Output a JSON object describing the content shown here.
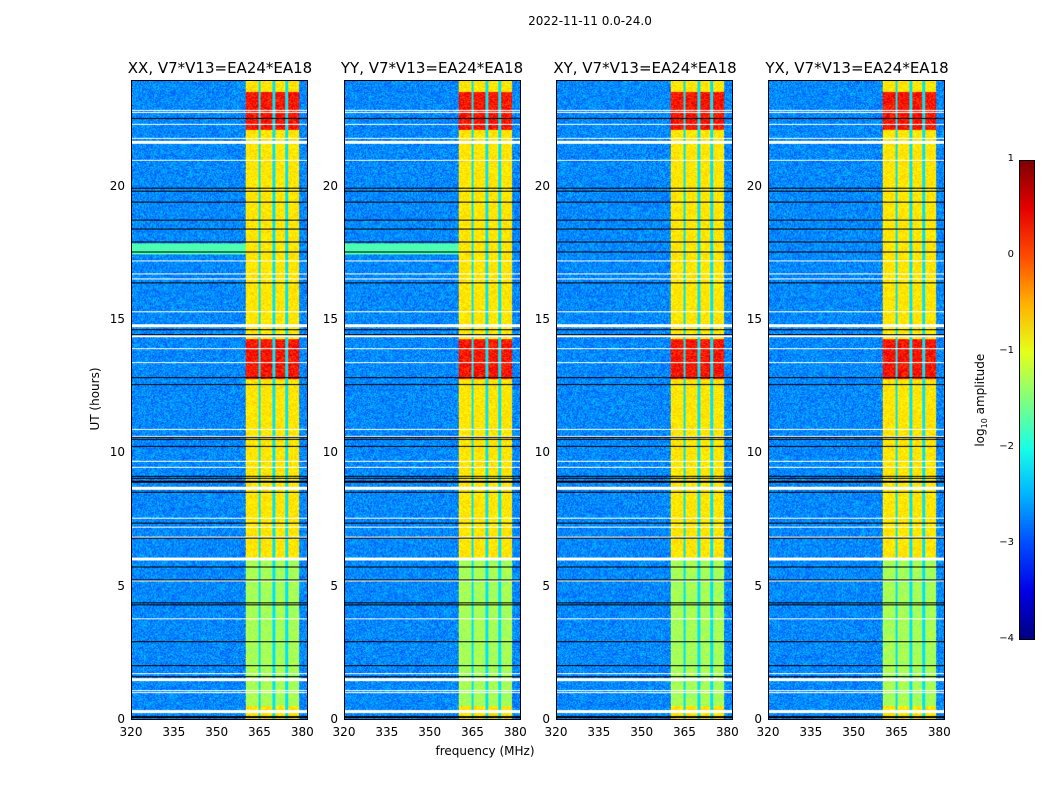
{
  "chart_data": {
    "type": "heatmap",
    "suptitle": "2022-11-11 0.0-24.0",
    "xlabel": "frequency (MHz)",
    "ylabel": "UT (hours)",
    "xlim": [
      320,
      382
    ],
    "ylim": [
      0,
      24
    ],
    "xticks": [
      "320",
      "335",
      "350",
      "365",
      "380"
    ],
    "yticks": [
      "0",
      "5",
      "10",
      "15",
      "20"
    ],
    "colorbar": {
      "label_prefix": "log",
      "label_sub": "10",
      "label_suffix": " amplitude",
      "range": [
        -4,
        1
      ],
      "ticks": [
        "1",
        "0",
        "−1",
        "−2",
        "−3",
        "−4"
      ],
      "colormap": "jet"
    },
    "panels": [
      {
        "title": "XX, V7*V13=EA24*EA18",
        "polarization": "XX"
      },
      {
        "title": "YY, V7*V13=EA24*EA18",
        "polarization": "YY"
      },
      {
        "title": "XY, V7*V13=EA24*EA18",
        "polarization": "XY"
      },
      {
        "title": "YX, V7*V13=EA24*EA18",
        "polarization": "YX"
      }
    ],
    "features": {
      "bright_band_mhz": [
        360,
        379
      ],
      "band_subchannel_gaps_mhz": [
        365,
        370,
        374.5
      ],
      "strong_rfi_hours": [
        [
          12.8,
          14.3
        ],
        [
          22.2,
          23.6
        ]
      ],
      "flagged_white_rows_hours": [
        0.3,
        1.5,
        6.05,
        8.7,
        14.8,
        21.7
      ],
      "bright_horizontal_band_hours": [
        17.5,
        17.9
      ]
    }
  }
}
